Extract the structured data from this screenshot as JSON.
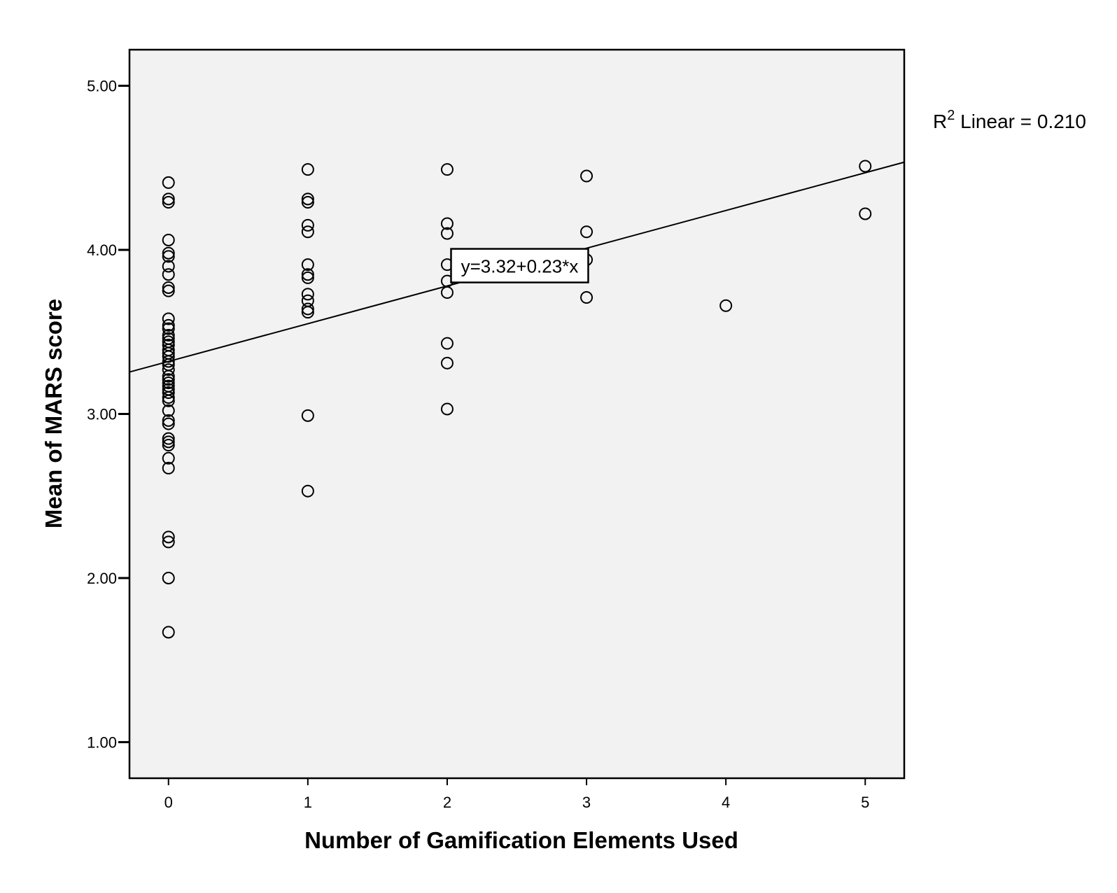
{
  "chart_data": {
    "type": "scatter",
    "xlabel": "Number of Gamification Elements Used",
    "ylabel": "Mean of MARS score",
    "xlim": [
      -0.28,
      5.28
    ],
    "ylim": [
      0.78,
      5.22
    ],
    "x_ticks": [
      0,
      1,
      2,
      3,
      4,
      5
    ],
    "x_tick_labels": [
      "0",
      "1",
      "2",
      "3",
      "4",
      "5"
    ],
    "y_ticks": [
      1,
      2,
      3,
      4,
      5
    ],
    "y_tick_labels": [
      "1.00",
      "2.00",
      "3.00",
      "4.00",
      "5.00"
    ],
    "grid": false,
    "background": "#f1f2f1",
    "points": [
      {
        "x": 0,
        "y": 4.41
      },
      {
        "x": 0,
        "y": 4.31
      },
      {
        "x": 0,
        "y": 4.29
      },
      {
        "x": 0,
        "y": 4.06
      },
      {
        "x": 0,
        "y": 3.98
      },
      {
        "x": 0,
        "y": 3.96
      },
      {
        "x": 0,
        "y": 3.9
      },
      {
        "x": 0,
        "y": 3.85
      },
      {
        "x": 0,
        "y": 3.77
      },
      {
        "x": 0,
        "y": 3.75
      },
      {
        "x": 0,
        "y": 3.58
      },
      {
        "x": 0,
        "y": 3.54
      },
      {
        "x": 0,
        "y": 3.52
      },
      {
        "x": 0,
        "y": 3.48
      },
      {
        "x": 0,
        "y": 3.46
      },
      {
        "x": 0,
        "y": 3.44
      },
      {
        "x": 0,
        "y": 3.42
      },
      {
        "x": 0,
        "y": 3.39
      },
      {
        "x": 0,
        "y": 3.37
      },
      {
        "x": 0,
        "y": 3.35
      },
      {
        "x": 0,
        "y": 3.32
      },
      {
        "x": 0,
        "y": 3.3
      },
      {
        "x": 0,
        "y": 3.27
      },
      {
        "x": 0,
        "y": 3.23
      },
      {
        "x": 0,
        "y": 3.21
      },
      {
        "x": 0,
        "y": 3.19
      },
      {
        "x": 0,
        "y": 3.17
      },
      {
        "x": 0,
        "y": 3.15
      },
      {
        "x": 0,
        "y": 3.13
      },
      {
        "x": 0,
        "y": 3.1
      },
      {
        "x": 0,
        "y": 3.08
      },
      {
        "x": 0,
        "y": 3.02
      },
      {
        "x": 0,
        "y": 2.96
      },
      {
        "x": 0,
        "y": 2.94
      },
      {
        "x": 0,
        "y": 2.85
      },
      {
        "x": 0,
        "y": 2.83
      },
      {
        "x": 0,
        "y": 2.81
      },
      {
        "x": 0,
        "y": 2.73
      },
      {
        "x": 0,
        "y": 2.67
      },
      {
        "x": 0,
        "y": 2.25
      },
      {
        "x": 0,
        "y": 2.22
      },
      {
        "x": 0,
        "y": 2.0
      },
      {
        "x": 0,
        "y": 1.67
      },
      {
        "x": 1,
        "y": 4.49
      },
      {
        "x": 1,
        "y": 4.31
      },
      {
        "x": 1,
        "y": 4.29
      },
      {
        "x": 1,
        "y": 4.15
      },
      {
        "x": 1,
        "y": 4.11
      },
      {
        "x": 1,
        "y": 3.91
      },
      {
        "x": 1,
        "y": 3.85
      },
      {
        "x": 1,
        "y": 3.83
      },
      {
        "x": 1,
        "y": 3.73
      },
      {
        "x": 1,
        "y": 3.69
      },
      {
        "x": 1,
        "y": 3.64
      },
      {
        "x": 1,
        "y": 3.62
      },
      {
        "x": 1,
        "y": 2.99
      },
      {
        "x": 1,
        "y": 2.53
      },
      {
        "x": 2,
        "y": 4.49
      },
      {
        "x": 2,
        "y": 4.16
      },
      {
        "x": 2,
        "y": 4.1
      },
      {
        "x": 2,
        "y": 3.91
      },
      {
        "x": 2,
        "y": 3.81
      },
      {
        "x": 2,
        "y": 3.74
      },
      {
        "x": 2,
        "y": 3.43
      },
      {
        "x": 2,
        "y": 3.31
      },
      {
        "x": 2,
        "y": 3.03
      },
      {
        "x": 3,
        "y": 4.45
      },
      {
        "x": 3,
        "y": 4.11
      },
      {
        "x": 3,
        "y": 3.94
      },
      {
        "x": 3,
        "y": 3.71
      },
      {
        "x": 4,
        "y": 3.66
      },
      {
        "x": 5,
        "y": 4.51
      },
      {
        "x": 5,
        "y": 4.22
      }
    ],
    "fit_line": {
      "intercept": 3.32,
      "slope": 0.23
    },
    "equation_label": "y=3.32+0.23*x",
    "r2_label": {
      "base": "R",
      "sup": "2",
      "text": " Linear = 0.210"
    }
  }
}
